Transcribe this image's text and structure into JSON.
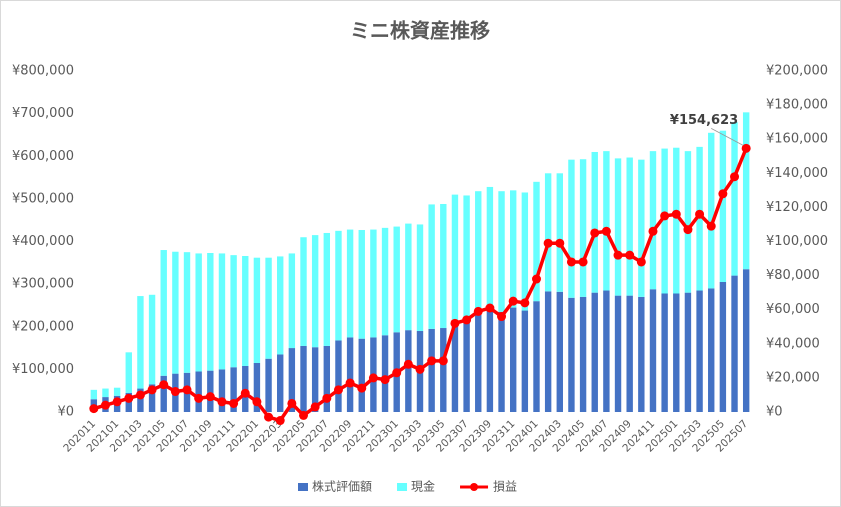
{
  "chart_data": {
    "type": "bar",
    "title": "ミニ株資産推移",
    "stacked": true,
    "grid": false,
    "legend": "bottom",
    "categories": [
      "202011",
      null,
      "202101",
      null,
      "202103",
      null,
      "202105",
      null,
      "202107",
      null,
      "202109",
      null,
      "202111",
      null,
      "202201",
      null,
      "202203",
      null,
      "202205",
      null,
      "202207",
      null,
      "202209",
      null,
      "202211",
      null,
      "202301",
      null,
      "202303",
      null,
      "202305",
      null,
      "202307",
      null,
      "202309",
      null,
      "202311",
      null,
      "202401",
      null,
      "202403",
      null,
      "202405",
      null,
      "202407",
      null,
      "202409",
      null,
      "202411",
      null,
      "202501",
      null,
      "202503",
      null,
      "202505",
      null,
      "202507"
    ],
    "series": [
      {
        "name": "株式評価額",
        "color": "#4472c4",
        "values": [
          30000,
          35000,
          38000,
          45000,
          55000,
          65000,
          85000,
          90000,
          92000,
          95000,
          97000,
          100000,
          105000,
          108000,
          115000,
          125000,
          135000,
          150000,
          155000,
          152000,
          155000,
          168000,
          175000,
          172000,
          175000,
          180000,
          187000,
          192000,
          190000,
          195000,
          197000,
          215000,
          220000,
          230000,
          240000,
          235000,
          245000,
          238000,
          260000,
          283000,
          282000,
          268000,
          270000,
          280000,
          285000,
          273000,
          273000,
          270000,
          288000,
          278000,
          278000,
          280000,
          285000,
          290000,
          305000,
          320000,
          335000
        ]
      },
      {
        "name": "現金",
        "color": "#66ffff",
        "values": [
          22000,
          20000,
          19000,
          95000,
          217000,
          210000,
          295000,
          286000,
          283000,
          277000,
          276000,
          272000,
          263000,
          258000,
          247000,
          237000,
          230000,
          222000,
          255000,
          263000,
          265000,
          257000,
          253000,
          255000,
          253000,
          252000,
          248000,
          250000,
          250000,
          292000,
          291000,
          295000,
          288000,
          288000,
          288000,
          283000,
          275000,
          277000,
          280000,
          277000,
          278000,
          324000,
          323000,
          330000,
          327000,
          322000,
          324000,
          322000,
          324000,
          340000,
          342000,
          332000,
          337000,
          365000,
          355000,
          360000,
          368000
        ]
      },
      {
        "name": "損益",
        "color": "#ff0000",
        "type": "line",
        "axis": "y2",
        "values": [
          2000,
          4000,
          6000,
          8000,
          10000,
          13000,
          16000,
          12000,
          13000,
          8000,
          9000,
          6000,
          5000,
          11000,
          6000,
          -3000,
          -5000,
          5000,
          -2000,
          3000,
          8000,
          13000,
          17000,
          14000,
          20000,
          19000,
          23000,
          28000,
          25000,
          30000,
          30000,
          52000,
          54000,
          59000,
          61000,
          56000,
          65000,
          64000,
          78000,
          99000,
          99000,
          88000,
          88000,
          105000,
          106000,
          92000,
          92000,
          88000,
          106000,
          115000,
          116000,
          107000,
          116000,
          109000,
          128000,
          138000,
          154623
        ],
        "value_labels": [
          null,
          null,
          null,
          null,
          null,
          null,
          null,
          null,
          null,
          null,
          null,
          null,
          null,
          null,
          null,
          null,
          null,
          null,
          null,
          null,
          null,
          null,
          null,
          null,
          null,
          null,
          null,
          null,
          null,
          null,
          null,
          null,
          null,
          null,
          null,
          null,
          null,
          null,
          null,
          null,
          null,
          null,
          null,
          null,
          null,
          null,
          null,
          null,
          null,
          null,
          null,
          null,
          null,
          null,
          null,
          null,
          "¥154,623"
        ]
      }
    ],
    "ylim": [
      0,
      800000
    ],
    "yticks": [
      {
        "value": 0,
        "label": "¥0"
      },
      {
        "value": 100000,
        "label": "¥100,000"
      },
      {
        "value": 200000,
        "label": "¥200,000"
      },
      {
        "value": 300000,
        "label": "¥300,000"
      },
      {
        "value": 400000,
        "label": "¥400,000"
      },
      {
        "value": 500000,
        "label": "¥500,000"
      },
      {
        "value": 600000,
        "label": "¥600,000"
      },
      {
        "value": 700000,
        "label": "¥700,000"
      },
      {
        "value": 800000,
        "label": "¥800,000"
      }
    ],
    "y2lim": [
      0,
      200000
    ],
    "y2ticks": [
      {
        "value": 0,
        "label": "¥0"
      },
      {
        "value": 20000,
        "label": "¥20,000"
      },
      {
        "value": 40000,
        "label": "¥40,000"
      },
      {
        "value": 60000,
        "label": "¥60,000"
      },
      {
        "value": 80000,
        "label": "¥80,000"
      },
      {
        "value": 100000,
        "label": "¥100,000"
      },
      {
        "value": 120000,
        "label": "¥120,000"
      },
      {
        "value": 140000,
        "label": "¥140,000"
      },
      {
        "value": 160000,
        "label": "¥160,000"
      },
      {
        "value": 180000,
        "label": "¥180,000"
      },
      {
        "value": 200000,
        "label": "¥200,000"
      }
    ]
  }
}
